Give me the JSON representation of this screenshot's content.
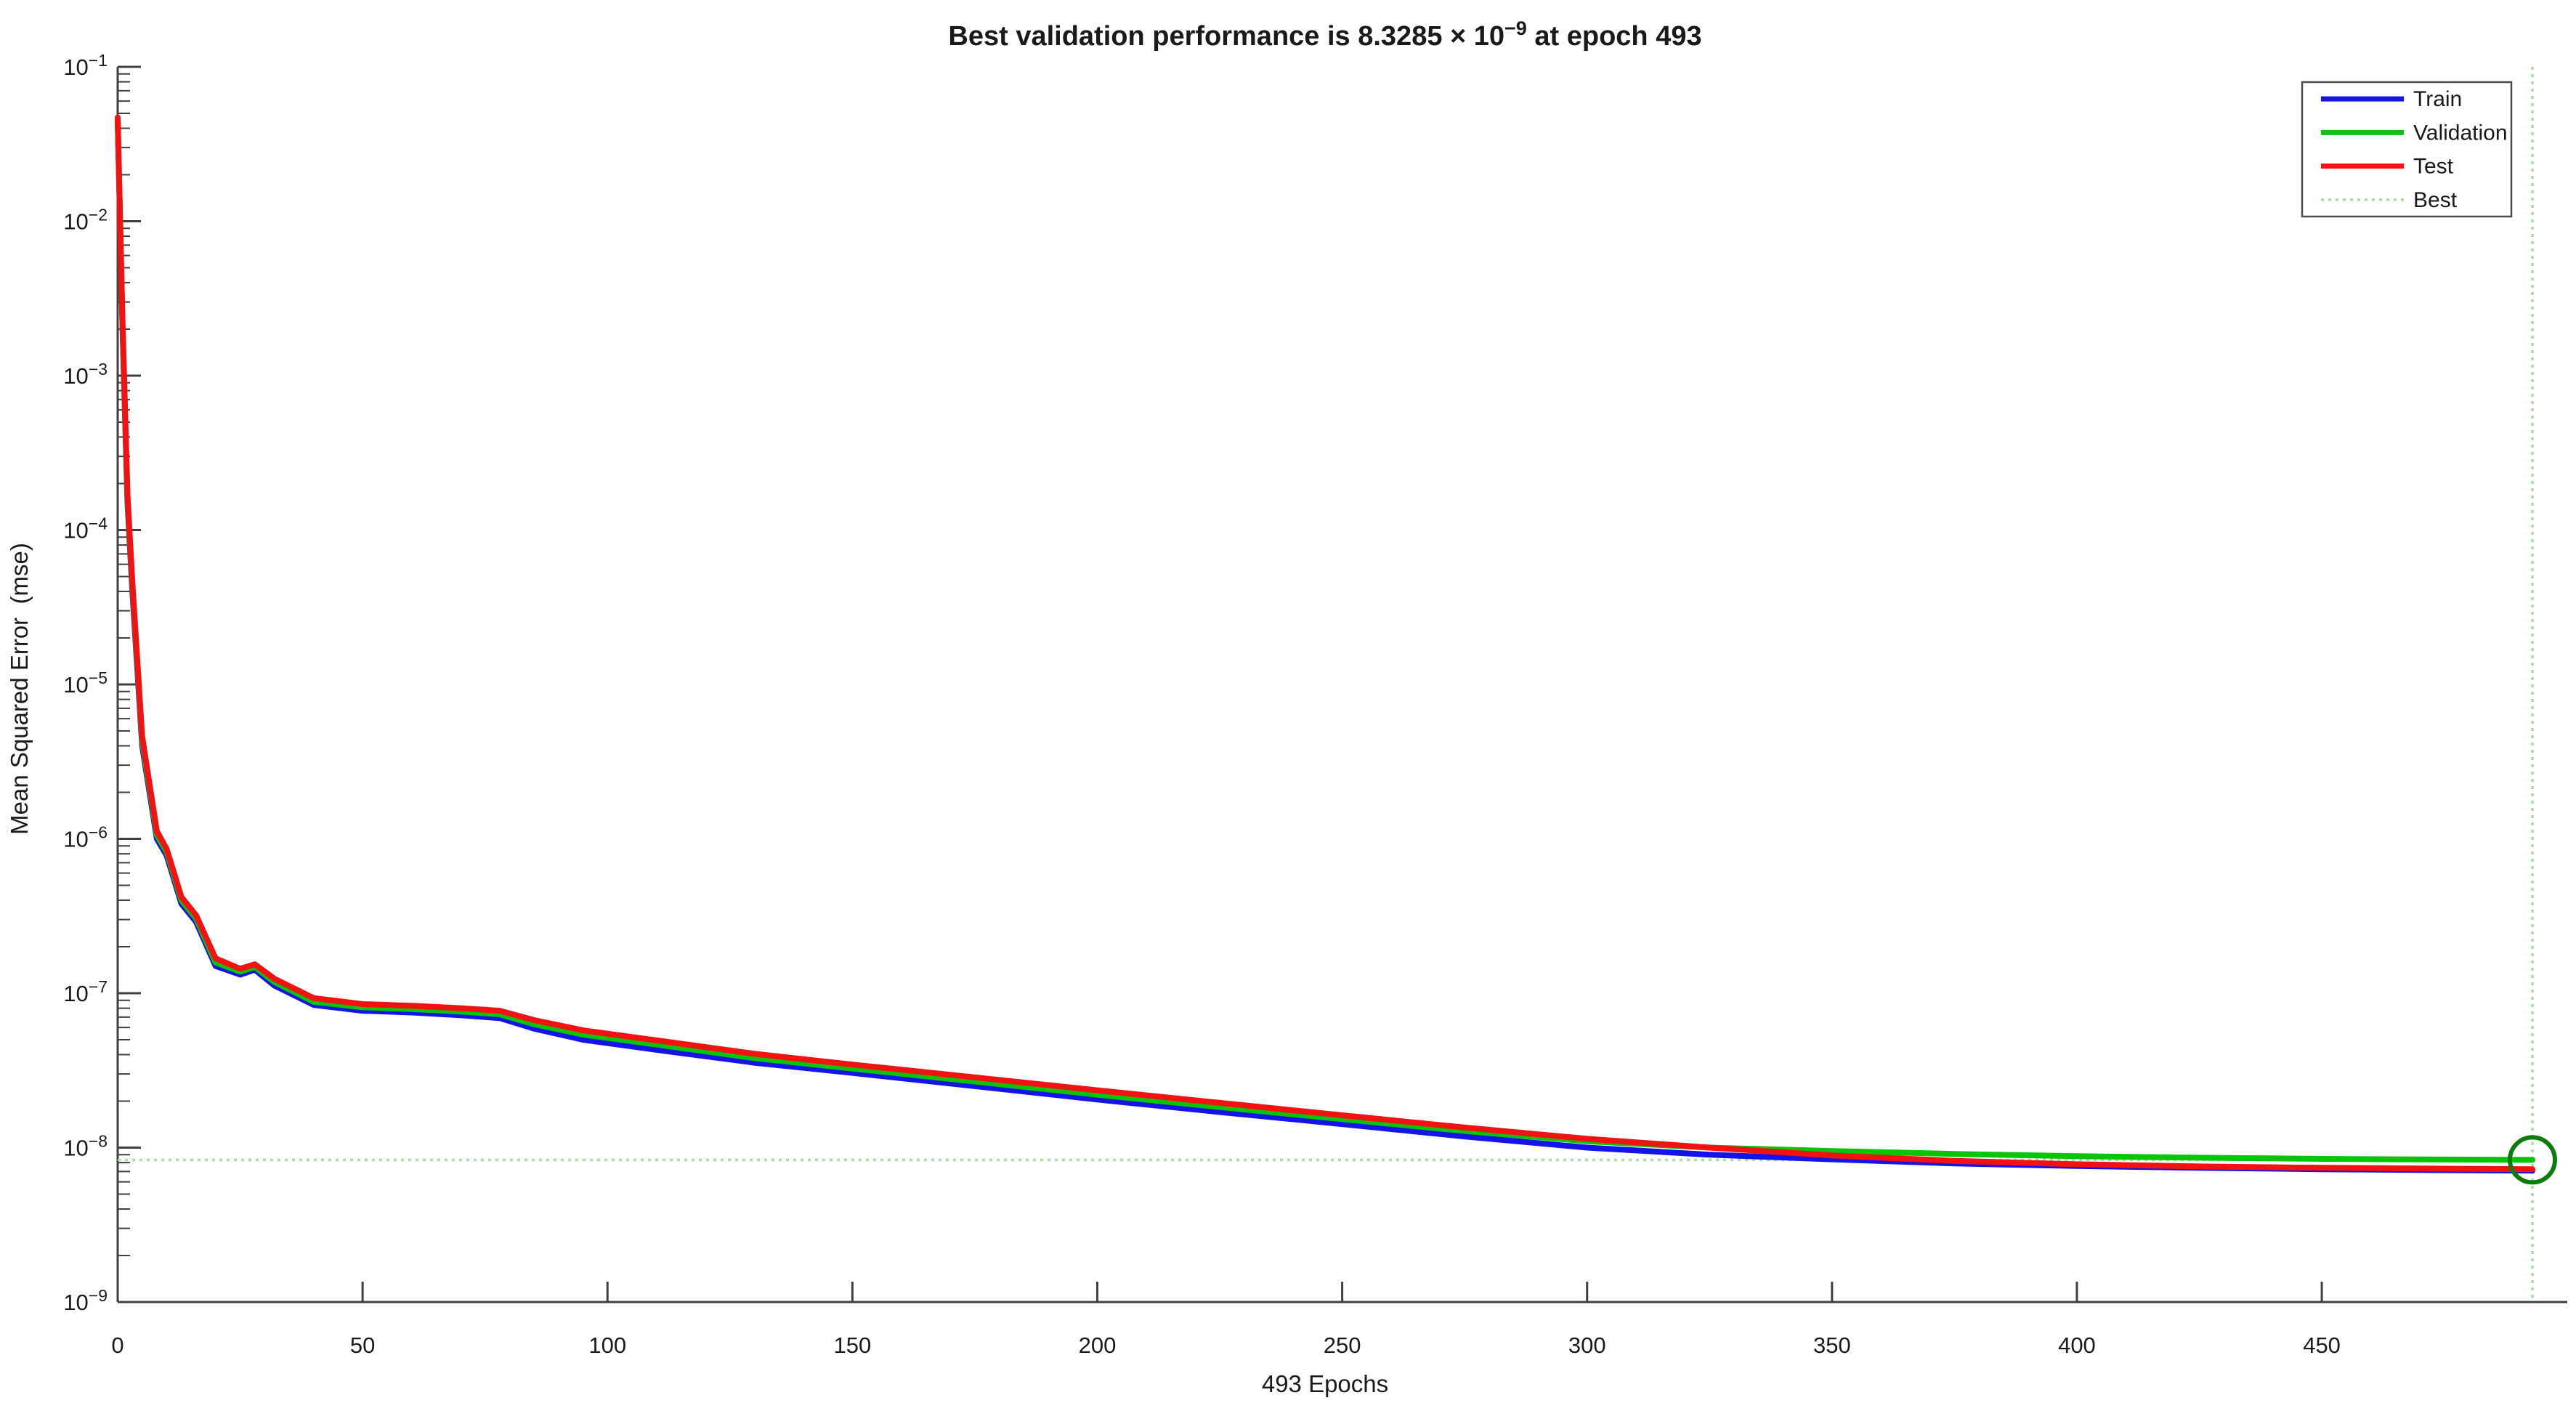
{
  "figure": {
    "background": "#ffffff"
  },
  "chart_data": {
    "type": "line",
    "title": "Best validation performance is 8.3285 × 10⁻⁹ at epoch 493",
    "title_parts": {
      "prefix": "Best validation performance is 8.3285 × 10",
      "sup": "−9",
      "suffix": " at epoch 493"
    },
    "xlabel": "493 Epochs",
    "ylabel": "Mean Squared Error  (mse)",
    "x_ticks": [
      0,
      50,
      100,
      150,
      200,
      250,
      300,
      350,
      400,
      450
    ],
    "y_tick_exponents": [
      -1,
      -2,
      -3,
      -4,
      -5,
      -6,
      -7,
      -8,
      -9
    ],
    "xlim": [
      0,
      493
    ],
    "ylim": [
      1e-09,
      0.1
    ],
    "yscale": "log",
    "grid": false,
    "legend_position": "top-right",
    "best": {
      "value": 8.3285e-09,
      "value_text": "8.3285 × 10⁻⁹",
      "epoch": 493
    },
    "colors": {
      "train": "#1414e8",
      "validation": "#09c409",
      "test": "#f21212",
      "best_line": "#a9dca9",
      "best_marker": "#0c7d0c",
      "axis": "#404040",
      "text": "#1a1a1a"
    },
    "epochs": [
      0,
      1,
      2,
      3,
      5,
      8,
      10,
      13,
      16,
      20,
      25,
      28,
      32,
      40,
      50,
      60,
      70,
      78,
      85,
      95,
      110,
      130,
      150,
      175,
      200,
      225,
      250,
      275,
      300,
      325,
      350,
      375,
      400,
      425,
      450,
      475,
      493
    ],
    "series": [
      {
        "name": "Train",
        "color_key": "train",
        "mse": [
          0.045,
          0.002,
          0.00015,
          4e-05,
          4e-06,
          1e-06,
          7.8e-07,
          3.8e-07,
          2.9e-07,
          1.5e-07,
          1.32e-07,
          1.42e-07,
          1.12e-07,
          8.4e-08,
          7.7e-08,
          7.5e-08,
          7.2e-08,
          6.9e-08,
          5.9e-08,
          5e-08,
          4.3e-08,
          3.55e-08,
          3.05e-08,
          2.5e-08,
          2.05e-08,
          1.7e-08,
          1.42e-08,
          1.18e-08,
          1e-08,
          9e-09,
          8.4e-09,
          7.9e-09,
          7.6e-09,
          7.4e-09,
          7.25e-09,
          7.15e-09,
          7.1e-09
        ]
      },
      {
        "name": "Validation",
        "color_key": "validation",
        "mse": [
          0.046,
          0.0021,
          0.00016,
          4.3e-05,
          4.3e-06,
          1.06e-06,
          8.2e-07,
          4e-07,
          3.05e-07,
          1.58e-07,
          1.38e-07,
          1.48e-07,
          1.18e-07,
          8.8e-08,
          8.1e-08,
          7.9e-08,
          7.6e-08,
          7.3e-08,
          6.3e-08,
          5.4e-08,
          4.65e-08,
          3.8e-08,
          3.25e-08,
          2.68e-08,
          2.2e-08,
          1.83e-08,
          1.53e-08,
          1.28e-08,
          1.1e-08,
          1e-08,
          9.5e-09,
          9.1e-09,
          8.8e-09,
          8.6e-09,
          8.45e-09,
          8.37e-09,
          8.3285e-09
        ]
      },
      {
        "name": "Test",
        "color_key": "test",
        "mse": [
          0.047,
          0.0022,
          0.00017,
          4.6e-05,
          4.6e-06,
          1.12e-06,
          8.6e-07,
          4.2e-07,
          3.2e-07,
          1.68e-07,
          1.44e-07,
          1.54e-07,
          1.24e-07,
          9.3e-08,
          8.5e-08,
          8.3e-08,
          8e-08,
          7.7e-08,
          6.7e-08,
          5.75e-08,
          4.95e-08,
          4.05e-08,
          3.45e-08,
          2.85e-08,
          2.35e-08,
          1.95e-08,
          1.62e-08,
          1.35e-08,
          1.14e-08,
          1e-08,
          8.9e-09,
          8.2e-09,
          7.8e-09,
          7.55e-09,
          7.4e-09,
          7.3e-09,
          7.25e-09
        ]
      }
    ],
    "legend": [
      {
        "label": "Train",
        "swatch": "train",
        "style": "solid"
      },
      {
        "label": "Validation",
        "swatch": "validation",
        "style": "solid"
      },
      {
        "label": "Test",
        "swatch": "test",
        "style": "solid"
      },
      {
        "label": "Best",
        "swatch": "best_line",
        "style": "dotted"
      }
    ]
  }
}
